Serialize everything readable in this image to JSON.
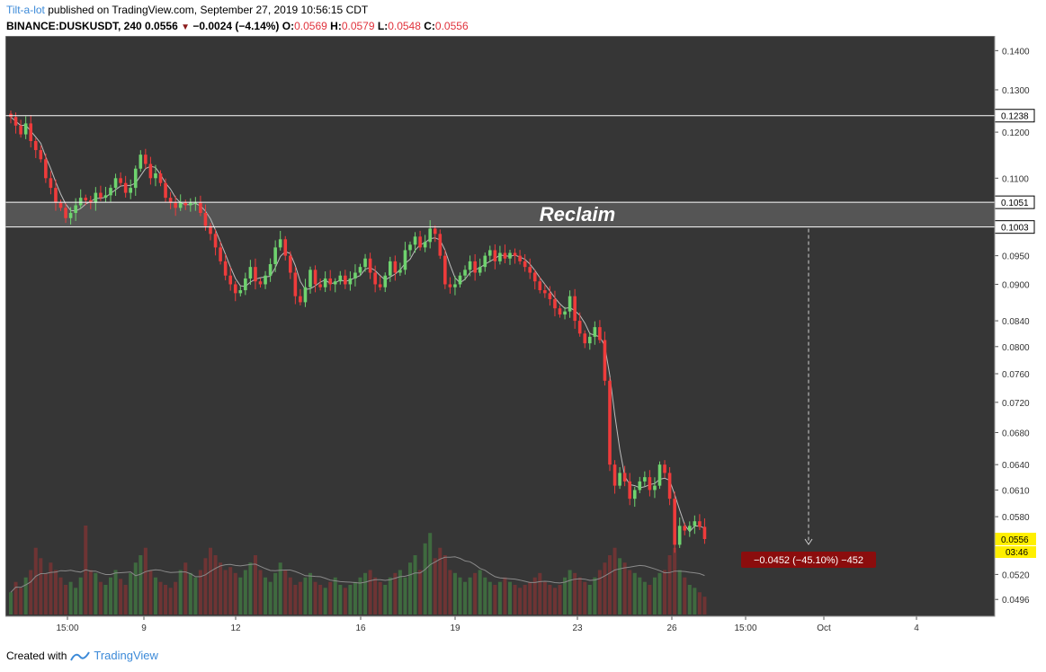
{
  "header": {
    "author": "Tilt-a-lot",
    "published": " published on TradingView.com, September 27, 2019 10:56:15 CDT",
    "symbol": "BINANCE:DUSKUSDT, 240",
    "last": "0.0556",
    "change": "−0.0024 (−4.14%)",
    "o_label": "O:",
    "o": "0.0569",
    "h_label": "H:",
    "h": "0.0579",
    "l_label": "L:",
    "l": "0.0548",
    "c_label": "C:",
    "c": "0.0556"
  },
  "footer": {
    "created_with": "Created with",
    "brand": "TradingView"
  },
  "annotations": {
    "reclaim": "Reclaim",
    "measure": "−0.0452 (−45.10%) −452",
    "countdown": "03:46"
  },
  "colors": {
    "background": "#363636",
    "up": "#6ed36e",
    "down": "#ef3b3b",
    "ma": "#bdbdbd",
    "zone": "#555555",
    "measure_bg": "#8b0d0d",
    "price_badge": "#ffef00"
  },
  "chart_data": {
    "type": "candlestick",
    "y_scale": "log",
    "ylim": [
      0.0487,
      0.142
    ],
    "y_ticks": [
      "0.1400",
      "0.1300",
      "0.1200",
      "0.1100",
      "0.0950",
      "0.0900",
      "0.0840",
      "0.0800",
      "0.0760",
      "0.0720",
      "0.0680",
      "0.0640",
      "0.0610",
      "0.0580",
      "0.0520",
      "0.0496"
    ],
    "x_ticks": [
      "15:00",
      "9",
      "12",
      "16",
      "19",
      "23",
      "26",
      "15:00",
      "Oct",
      "4"
    ],
    "horizontal_levels": [
      "0.1238",
      "0.1051",
      "0.1003"
    ],
    "zone": [
      0.1003,
      0.1051
    ],
    "last_price": "0.0556",
    "closes": [
      0.1235,
      0.1215,
      0.1195,
      0.122,
      0.118,
      0.116,
      0.114,
      0.11,
      0.108,
      0.105,
      0.104,
      0.102,
      0.103,
      0.1045,
      0.106,
      0.1055,
      0.105,
      0.107,
      0.106,
      0.1065,
      0.108,
      0.11,
      0.109,
      0.107,
      0.108,
      0.112,
      0.115,
      0.113,
      0.11,
      0.111,
      0.109,
      0.106,
      0.105,
      0.104,
      0.105,
      0.1045,
      0.105,
      0.105,
      0.103,
      0.1005,
      0.099,
      0.0965,
      0.094,
      0.0915,
      0.09,
      0.0885,
      0.089,
      0.091,
      0.093,
      0.0905,
      0.09,
      0.0915,
      0.0935,
      0.0965,
      0.098,
      0.095,
      0.092,
      0.088,
      0.087,
      0.0895,
      0.0925,
      0.09,
      0.0895,
      0.091,
      0.09,
      0.0905,
      0.0915,
      0.09,
      0.091,
      0.092,
      0.093,
      0.0945,
      0.092,
      0.09,
      0.0895,
      0.0915,
      0.094,
      0.092,
      0.0925,
      0.096,
      0.097,
      0.0985,
      0.0965,
      0.0975,
      0.1,
      0.099,
      0.095,
      0.09,
      0.0895,
      0.09,
      0.0915,
      0.0925,
      0.094,
      0.092,
      0.093,
      0.095,
      0.096,
      0.094,
      0.0955,
      0.0945,
      0.0955,
      0.095,
      0.094,
      0.093,
      0.092,
      0.0905,
      0.089,
      0.0885,
      0.0875,
      0.086,
      0.085,
      0.0855,
      0.088,
      0.084,
      0.082,
      0.0805,
      0.0815,
      0.083,
      0.081,
      0.075,
      0.064,
      0.0615,
      0.063,
      0.062,
      0.06,
      0.061,
      0.062,
      0.0625,
      0.061,
      0.0615,
      0.064,
      0.063,
      0.06,
      0.055,
      0.057,
      0.0565,
      0.057,
      0.0575,
      0.0569,
      0.0556
    ],
    "volumes": [
      0.15,
      0.22,
      0.18,
      0.25,
      0.3,
      0.45,
      0.38,
      0.28,
      0.35,
      0.3,
      0.25,
      0.2,
      0.22,
      0.18,
      0.25,
      0.6,
      0.3,
      0.28,
      0.22,
      0.2,
      0.25,
      0.3,
      0.24,
      0.2,
      0.28,
      0.35,
      0.4,
      0.45,
      0.3,
      0.25,
      0.22,
      0.2,
      0.18,
      0.22,
      0.3,
      0.35,
      0.28,
      0.25,
      0.3,
      0.38,
      0.45,
      0.4,
      0.35,
      0.3,
      0.32,
      0.28,
      0.25,
      0.3,
      0.35,
      0.4,
      0.3,
      0.25,
      0.22,
      0.28,
      0.35,
      0.3,
      0.25,
      0.2,
      0.22,
      0.25,
      0.28,
      0.22,
      0.2,
      0.18,
      0.22,
      0.25,
      0.2,
      0.18,
      0.2,
      0.22,
      0.25,
      0.28,
      0.3,
      0.25,
      0.22,
      0.2,
      0.25,
      0.28,
      0.3,
      0.25,
      0.35,
      0.4,
      0.3,
      0.48,
      0.55,
      0.38,
      0.45,
      0.4,
      0.3,
      0.28,
      0.25,
      0.22,
      0.25,
      0.28,
      0.3,
      0.25,
      0.22,
      0.2,
      0.22,
      0.25,
      0.22,
      0.2,
      0.18,
      0.2,
      0.22,
      0.25,
      0.28,
      0.22,
      0.2,
      0.18,
      0.2,
      0.25,
      0.3,
      0.28,
      0.25,
      0.22,
      0.2,
      0.25,
      0.3,
      0.35,
      0.4,
      0.45,
      0.38,
      0.35,
      0.3,
      0.28,
      0.25,
      0.22,
      0.2,
      0.25,
      0.28,
      0.3,
      0.4,
      0.45,
      0.3,
      0.25,
      0.2,
      0.18,
      0.15,
      0.12
    ]
  }
}
